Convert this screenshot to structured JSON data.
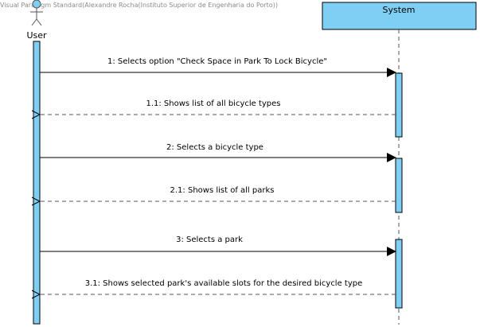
{
  "watermark": "Visual Paradigm Standard(Alexandre Rocha(Instituto Superior de Engenharia do Porto))",
  "actor": {
    "label": "User",
    "icon": "stick-figure-icon"
  },
  "system": {
    "label": "System"
  },
  "colors": {
    "activation_fill": "#7fcff5",
    "lifeline_header_fill": "#7fcff5",
    "border": "#000000",
    "dashed_line": "#555555"
  },
  "messages": [
    {
      "label": "1: Selects option \"Check Space in Park To Lock Bicycle\"",
      "kind": "call"
    },
    {
      "label": "1.1: Shows list of all bicycle types",
      "kind": "return"
    },
    {
      "label": "2: Selects a bicycle type",
      "kind": "call"
    },
    {
      "label": "2.1: Shows list of all parks",
      "kind": "return"
    },
    {
      "label": "3: Selects a park",
      "kind": "call"
    },
    {
      "label": "3.1: Shows selected park's available slots for the desired bicycle type",
      "kind": "return"
    }
  ]
}
